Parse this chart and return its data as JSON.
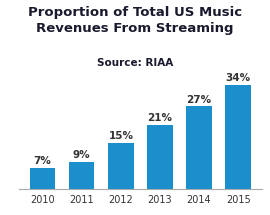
{
  "title": "Proportion of Total US Music\nRevenues From Streaming",
  "subtitle": "Source: RIAA",
  "categories": [
    "2010",
    "2011",
    "2012",
    "2013",
    "2014",
    "2015"
  ],
  "values": [
    7,
    9,
    15,
    21,
    27,
    34
  ],
  "labels": [
    "7%",
    "9%",
    "15%",
    "21%",
    "27%",
    "34%"
  ],
  "bar_color": "#1a8fcb",
  "background_color": "#ffffff",
  "title_fontsize": 9.5,
  "subtitle_fontsize": 7.5,
  "label_fontsize": 7.5,
  "tick_fontsize": 7.0,
  "ylim": [
    0,
    40
  ]
}
